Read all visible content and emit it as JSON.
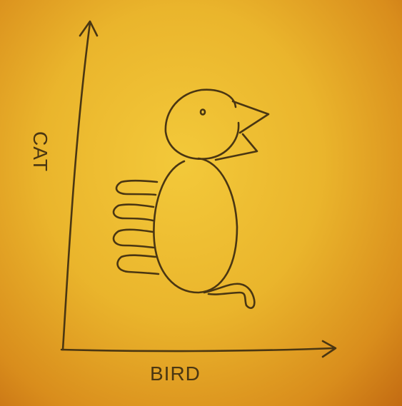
{
  "axes": {
    "y_label": "CAT",
    "x_label": "BIRD"
  },
  "figure": {
    "icon": "cat-bird-hybrid-icon"
  },
  "colors": {
    "paper": "#eab52c",
    "ink": "#4a3612"
  }
}
